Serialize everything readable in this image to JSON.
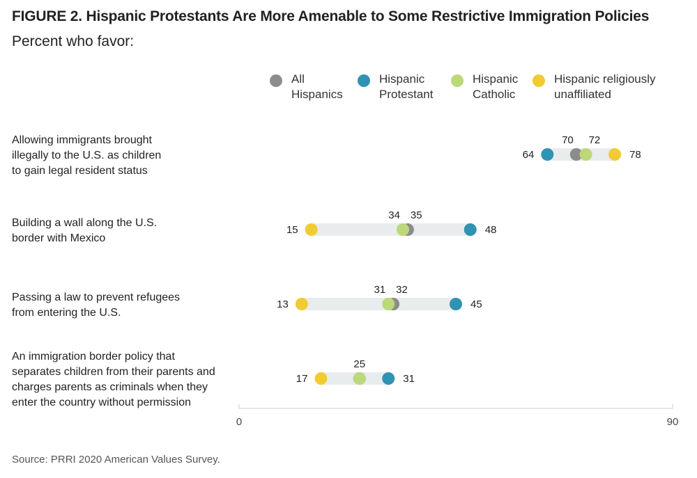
{
  "chart_data": {
    "type": "dot",
    "title": "FIGURE 2. Hispanic Protestants Are More Amenable to Some Restrictive Immigration Policies",
    "subtitle": "Percent who favor:",
    "source": "Source: PRRI 2020 American Values Survey.",
    "xlim": [
      0,
      90
    ],
    "ticks": [
      "0",
      "90"
    ],
    "series": [
      {
        "name": "All Hispanics",
        "lines": [
          "All",
          "Hispanics"
        ],
        "color": "#8c8c8c"
      },
      {
        "name": "Hispanic Protestant",
        "lines": [
          "Hispanic",
          "Protestant"
        ],
        "color": "#2f93b3"
      },
      {
        "name": "Hispanic Catholic",
        "lines": [
          "Hispanic",
          "Catholic"
        ],
        "color": "#bcd879"
      },
      {
        "name": "Hispanic religiously unaffiliated",
        "lines": [
          "Hispanic religiously",
          "unaffiliated"
        ],
        "color": "#f1cb32"
      }
    ],
    "categories": [
      {
        "label_lines": [
          "Allowing immigrants brought",
          "illegally to the U.S. as children",
          "to gain legal resident status"
        ],
        "values": {
          "All Hispanics": 70,
          "Hispanic Protestant": 64,
          "Hispanic Catholic": 72,
          "Hispanic religiously unaffiliated": 78
        }
      },
      {
        "label_lines": [
          "Building a wall along the U.S.",
          "border with Mexico"
        ],
        "values": {
          "All Hispanics": 35,
          "Hispanic Protestant": 48,
          "Hispanic Catholic": 34,
          "Hispanic religiously unaffiliated": 15
        }
      },
      {
        "label_lines": [
          "Passing a law to prevent refugees",
          "from entering the U.S."
        ],
        "values": {
          "All Hispanics": 32,
          "Hispanic Protestant": 45,
          "Hispanic Catholic": 31,
          "Hispanic religiously unaffiliated": 13
        }
      },
      {
        "label_lines": [
          "An immigration border policy that",
          "separates children from their parents and",
          "charges parents as criminals when they",
          "enter the country without permission"
        ],
        "values": {
          "All Hispanics": 25,
          "Hispanic Protestant": 31,
          "Hispanic Catholic": 25,
          "Hispanic religiously unaffiliated": 17
        }
      }
    ]
  }
}
